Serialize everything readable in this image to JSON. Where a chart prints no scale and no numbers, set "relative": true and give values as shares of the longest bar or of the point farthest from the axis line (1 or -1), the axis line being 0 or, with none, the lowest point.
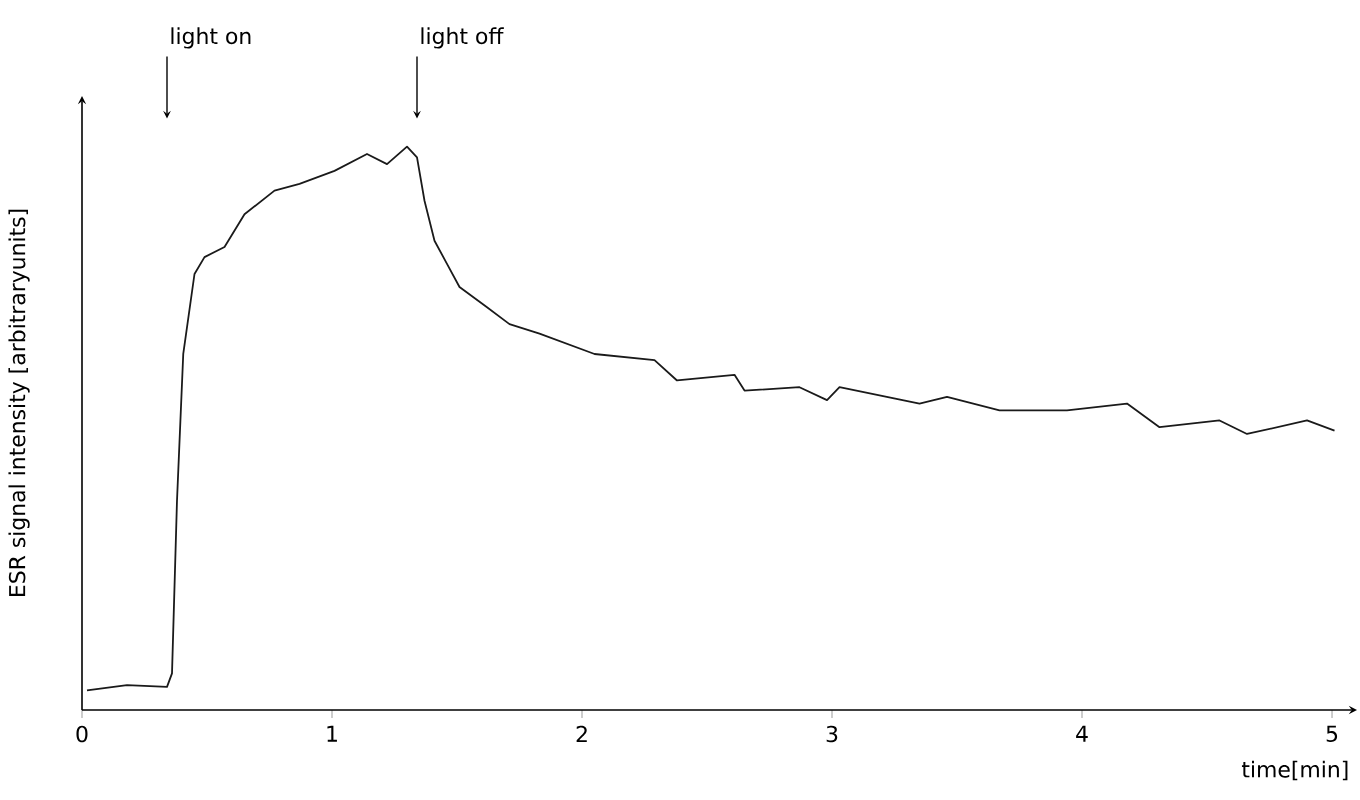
{
  "chart_data": {
    "type": "line",
    "relative": true,
    "xlabel": "time[min]",
    "ylabel": "ESR signal intensity [arbitraryunits]",
    "xlim": [
      0,
      5.1
    ],
    "xticks": [
      0,
      1,
      2,
      3,
      4,
      5
    ],
    "marker": "none",
    "line_style": "solid",
    "grid": false,
    "ref_lines": [
      {
        "axis": "x",
        "value": 0.34,
        "label": "light on"
      },
      {
        "axis": "x",
        "value": 1.34,
        "label": "light off"
      }
    ],
    "series": [
      {
        "color": "#1a1a1a",
        "x": [
          0.02,
          0.18,
          0.34,
          0.36,
          0.38,
          0.405,
          0.45,
          0.49,
          0.57,
          0.65,
          0.77,
          0.87,
          1.01,
          1.14,
          1.22,
          1.3,
          1.34,
          1.37,
          1.41,
          1.46,
          1.51,
          1.62,
          1.71,
          1.83,
          2.05,
          2.29,
          2.38,
          2.61,
          2.65,
          2.87,
          2.98,
          3.03,
          3.35,
          3.46,
          3.67,
          3.94,
          4.18,
          4.31,
          4.55,
          4.66,
          4.9,
          5.01
        ],
        "values": [
          0.035,
          0.044,
          0.041,
          0.065,
          0.372,
          0.632,
          0.774,
          0.804,
          0.822,
          0.88,
          0.922,
          0.934,
          0.957,
          0.987,
          0.969,
          1.0,
          0.981,
          0.904,
          0.833,
          0.792,
          0.751,
          0.715,
          0.685,
          0.668,
          0.632,
          0.621,
          0.585,
          0.595,
          0.567,
          0.573,
          0.55,
          0.573,
          0.544,
          0.556,
          0.532,
          0.532,
          0.544,
          0.502,
          0.514,
          0.49,
          0.514,
          0.496
        ]
      }
    ]
  }
}
